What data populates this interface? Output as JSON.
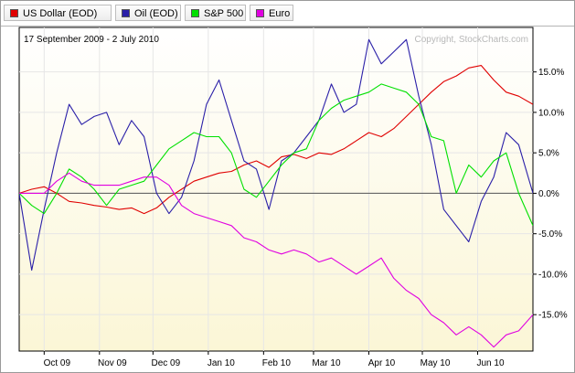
{
  "legend": [
    {
      "label": "US Dollar (EOD)",
      "color": "#e00000"
    },
    {
      "label": "Oil (EOD)",
      "color": "#2a1fa8"
    },
    {
      "label": "S&P 500",
      "color": "#00e000"
    },
    {
      "label": "Euro",
      "color": "#e000e0"
    }
  ],
  "chart_data": {
    "type": "line",
    "title": "17 September 2009 - 2 July 2010",
    "watermark": "Copyright, StockCharts.com",
    "y_tick_labels": [
      "15.0%",
      "10.0%",
      "5.0%",
      "0.0%",
      "-5.0%",
      "-10.0%",
      "-15.0%"
    ],
    "y_ticks": [
      15,
      10,
      5,
      0,
      -5,
      -10,
      -15
    ],
    "ylim": [
      -19.5,
      20.5
    ],
    "x_tick_labels": [
      "Oct 09",
      "Nov 09",
      "Dec 09",
      "Jan 10",
      "Feb 10",
      "Mar 10",
      "Apr 10",
      "May 10",
      "Jun 10"
    ],
    "x_ticks": [
      "2009-10-01",
      "2009-11-01",
      "2009-12-01",
      "2010-01-01",
      "2010-02-01",
      "2010-03-01",
      "2010-04-01",
      "2010-05-01",
      "2010-06-01"
    ],
    "xlim": [
      "2009-09-17",
      "2010-07-02"
    ],
    "zero_line": true,
    "grid": true,
    "series": [
      {
        "name": "US Dollar (EOD)",
        "color": "#e00000",
        "x": [
          "2009-09-17",
          "2009-09-24",
          "2009-10-01",
          "2009-10-08",
          "2009-10-15",
          "2009-10-22",
          "2009-10-29",
          "2009-11-05",
          "2009-11-12",
          "2009-11-19",
          "2009-11-26",
          "2009-12-03",
          "2009-12-10",
          "2009-12-17",
          "2009-12-24",
          "2009-12-31",
          "2010-01-07",
          "2010-01-14",
          "2010-01-21",
          "2010-01-28",
          "2010-02-04",
          "2010-02-11",
          "2010-02-18",
          "2010-02-25",
          "2010-03-04",
          "2010-03-11",
          "2010-03-18",
          "2010-03-25",
          "2010-04-01",
          "2010-04-08",
          "2010-04-15",
          "2010-04-22",
          "2010-04-29",
          "2010-05-06",
          "2010-05-13",
          "2010-05-20",
          "2010-05-27",
          "2010-06-03",
          "2010-06-10",
          "2010-06-17",
          "2010-06-24",
          "2010-07-02"
        ],
        "values": [
          0.0,
          0.5,
          0.8,
          0.0,
          -1.0,
          -1.2,
          -1.5,
          -1.7,
          -2.0,
          -1.8,
          -2.5,
          -1.8,
          -0.5,
          0.5,
          1.5,
          2.0,
          2.5,
          2.7,
          3.5,
          4.0,
          3.2,
          4.5,
          4.8,
          4.3,
          5.0,
          4.8,
          5.5,
          6.5,
          7.5,
          7.0,
          8.0,
          9.5,
          11.0,
          12.5,
          13.8,
          14.5,
          15.5,
          15.8,
          14.0,
          12.5,
          12.0,
          11.0
        ]
      },
      {
        "name": "Oil (EOD)",
        "color": "#2a1fa8",
        "x": [
          "2009-09-17",
          "2009-09-24",
          "2009-10-01",
          "2009-10-08",
          "2009-10-15",
          "2009-10-22",
          "2009-10-29",
          "2009-11-05",
          "2009-11-12",
          "2009-11-19",
          "2009-11-26",
          "2009-12-03",
          "2009-12-10",
          "2009-12-17",
          "2009-12-24",
          "2009-12-31",
          "2010-01-07",
          "2010-01-14",
          "2010-01-21",
          "2010-01-28",
          "2010-02-04",
          "2010-02-11",
          "2010-02-18",
          "2010-02-25",
          "2010-03-04",
          "2010-03-11",
          "2010-03-18",
          "2010-03-25",
          "2010-04-01",
          "2010-04-08",
          "2010-04-15",
          "2010-04-22",
          "2010-04-29",
          "2010-05-06",
          "2010-05-13",
          "2010-05-20",
          "2010-05-27",
          "2010-06-03",
          "2010-06-10",
          "2010-06-17",
          "2010-06-24",
          "2010-07-02"
        ],
        "values": [
          0.0,
          -9.5,
          -2.0,
          5.0,
          11.0,
          8.5,
          9.5,
          10.0,
          6.0,
          9.0,
          7.0,
          0.0,
          -2.5,
          -0.5,
          4.0,
          11.0,
          14.0,
          9.0,
          4.0,
          3.0,
          -2.0,
          4.0,
          5.0,
          7.0,
          9.0,
          13.5,
          10.0,
          11.0,
          19.0,
          16.0,
          17.5,
          19.0,
          12.0,
          6.0,
          -2.0,
          -4.0,
          -6.0,
          -1.0,
          2.0,
          7.5,
          6.0,
          0.0
        ]
      },
      {
        "name": "S&P 500",
        "color": "#00e000",
        "x": [
          "2009-09-17",
          "2009-09-24",
          "2009-10-01",
          "2009-10-08",
          "2009-10-15",
          "2009-10-22",
          "2009-10-29",
          "2009-11-05",
          "2009-11-12",
          "2009-11-19",
          "2009-11-26",
          "2009-12-03",
          "2009-12-10",
          "2009-12-17",
          "2009-12-24",
          "2009-12-31",
          "2010-01-07",
          "2010-01-14",
          "2010-01-21",
          "2010-01-28",
          "2010-02-04",
          "2010-02-11",
          "2010-02-18",
          "2010-02-25",
          "2010-03-04",
          "2010-03-11",
          "2010-03-18",
          "2010-03-25",
          "2010-04-01",
          "2010-04-08",
          "2010-04-15",
          "2010-04-22",
          "2010-04-29",
          "2010-05-06",
          "2010-05-13",
          "2010-05-20",
          "2010-05-27",
          "2010-06-03",
          "2010-06-10",
          "2010-06-17",
          "2010-06-24",
          "2010-07-02"
        ],
        "values": [
          0.0,
          -1.5,
          -2.5,
          0.0,
          3.0,
          2.0,
          0.5,
          -1.5,
          0.5,
          1.0,
          1.5,
          3.5,
          5.5,
          6.5,
          7.5,
          7.0,
          7.0,
          5.0,
          0.5,
          -0.5,
          1.5,
          3.5,
          5.0,
          5.5,
          9.0,
          10.5,
          11.5,
          12.0,
          12.5,
          13.5,
          13.0,
          12.5,
          11.0,
          7.0,
          6.5,
          0.0,
          3.5,
          2.0,
          4.0,
          5.0,
          0.0,
          -4.0
        ]
      },
      {
        "name": "Euro",
        "color": "#e000e0",
        "x": [
          "2009-09-17",
          "2009-09-24",
          "2009-10-01",
          "2009-10-08",
          "2009-10-15",
          "2009-10-22",
          "2009-10-29",
          "2009-11-05",
          "2009-11-12",
          "2009-11-19",
          "2009-11-26",
          "2009-12-03",
          "2009-12-10",
          "2009-12-17",
          "2009-12-24",
          "2009-12-31",
          "2010-01-07",
          "2010-01-14",
          "2010-01-21",
          "2010-01-28",
          "2010-02-04",
          "2010-02-11",
          "2010-02-18",
          "2010-02-25",
          "2010-03-04",
          "2010-03-11",
          "2010-03-18",
          "2010-03-25",
          "2010-04-01",
          "2010-04-08",
          "2010-04-15",
          "2010-04-22",
          "2010-04-29",
          "2010-05-06",
          "2010-05-13",
          "2010-05-20",
          "2010-05-27",
          "2010-06-03",
          "2010-06-10",
          "2010-06-17",
          "2010-06-24",
          "2010-07-02"
        ],
        "values": [
          0.0,
          0.0,
          0.0,
          1.5,
          2.5,
          1.5,
          1.0,
          1.0,
          1.0,
          1.5,
          2.0,
          2.0,
          1.0,
          -1.5,
          -2.5,
          -3.0,
          -3.5,
          -4.0,
          -5.5,
          -6.0,
          -7.0,
          -7.5,
          -7.0,
          -7.5,
          -8.5,
          -8.0,
          -9.0,
          -10.0,
          -9.0,
          -8.0,
          -10.5,
          -12.0,
          -13.0,
          -15.0,
          -16.0,
          -17.5,
          -16.5,
          -17.5,
          -19.0,
          -17.5,
          -17.0,
          -15.0
        ]
      }
    ]
  }
}
